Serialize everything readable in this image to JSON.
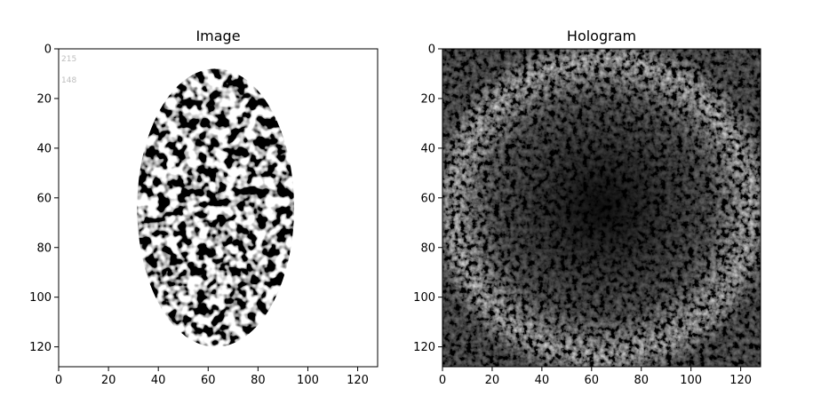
{
  "chart_data": [
    {
      "type": "heatmap",
      "title": "Image",
      "xlabel": "",
      "ylabel": "",
      "xlim": [
        0,
        128
      ],
      "ylim": [
        128,
        0
      ],
      "xticks": [
        "0",
        "20",
        "40",
        "60",
        "80",
        "100",
        "120"
      ],
      "yticks": [
        "0",
        "20",
        "40",
        "60",
        "80",
        "100",
        "120"
      ],
      "grid": false,
      "colormap": "gray",
      "ellipse": {
        "center": [
          63,
          64
        ],
        "radii": [
          31.5,
          56
        ]
      },
      "corner_labels": [
        "215",
        "148"
      ]
    },
    {
      "type": "heatmap",
      "title": "Hologram",
      "xlabel": "",
      "ylabel": "",
      "xlim": [
        0,
        128
      ],
      "ylim": [
        128,
        0
      ],
      "xticks": [
        "0",
        "20",
        "40",
        "60",
        "80",
        "100",
        "120"
      ],
      "yticks": [
        "0",
        "20",
        "40",
        "60",
        "80",
        "100",
        "120"
      ],
      "grid": false,
      "colormap": "gray"
    }
  ]
}
